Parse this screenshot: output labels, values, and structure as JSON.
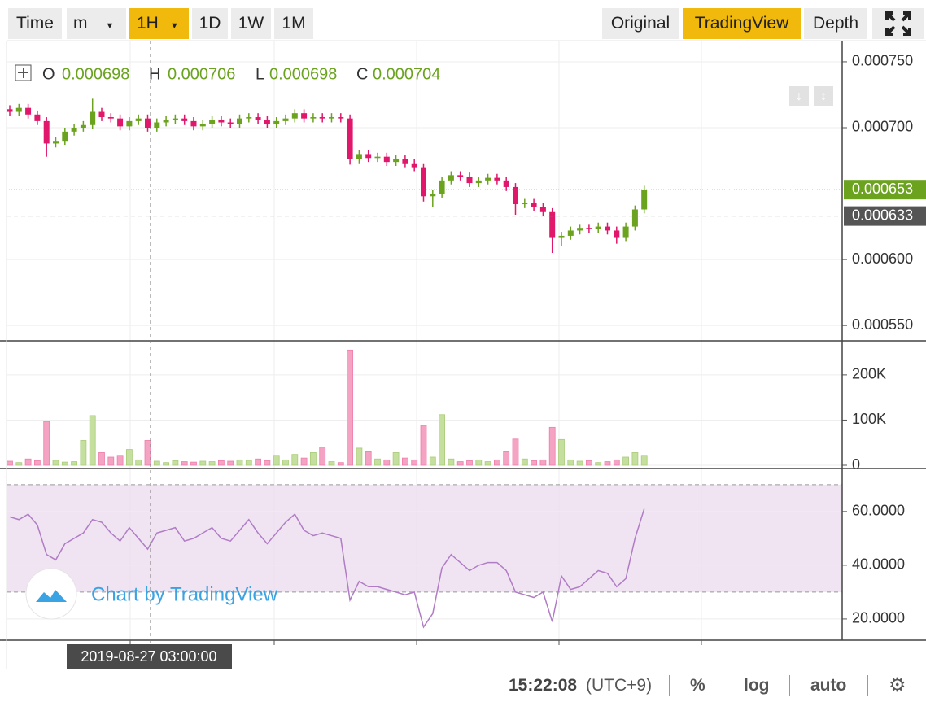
{
  "toolbar": {
    "left": [
      "Time",
      "m",
      "1H",
      "1D",
      "1W",
      "1M"
    ],
    "right": [
      "Original",
      "TradingView",
      "Depth"
    ]
  },
  "legend": {
    "o_label": "O",
    "open": 0.000698,
    "h_label": "H",
    "high": 0.000706,
    "l_label": "L",
    "low": 0.000698,
    "c_label": "C",
    "close": 0.000704
  },
  "watermark": "Chart by TradingView",
  "footer": {
    "time": "15:22:08",
    "timezone": "(UTC+9)",
    "buttons": [
      "%",
      "log",
      "auto"
    ]
  },
  "chart_data": [
    {
      "type": "candlestick",
      "up_color": "#6ba31e",
      "down_color": "#e0176b",
      "grid": true,
      "ylim": [
        0.000539,
        0.000766
      ],
      "yticks": [
        {
          "value": 0.00055,
          "label": "0.000550"
        },
        {
          "value": 0.0006,
          "label": "0.000600"
        },
        {
          "value": 0.0007,
          "label": "0.000700"
        },
        {
          "value": 0.00075,
          "label": "0.000750"
        }
      ],
      "last_price": 0.000653,
      "last_price_color": "#6ba31e",
      "marker_price": 0.000633,
      "marker_color": "#555555",
      "crosshair_label": "2019-08-27 03:00:00",
      "open": [
        0.000714,
        0.000712,
        0.000715,
        0.00071,
        0.000705,
        0.000688,
        0.00069,
        0.000697,
        0.0007,
        0.000702,
        0.000712,
        0.000708,
        0.000707,
        0.000701,
        0.000705,
        0.000707,
        0.0007,
        0.000704,
        0.000706,
        0.000707,
        0.000705,
        0.000701,
        0.000703,
        0.000706,
        0.000704,
        0.000703,
        0.000707,
        0.000708,
        0.000706,
        0.000703,
        0.000705,
        0.000707,
        0.000711,
        0.000707,
        0.000708,
        0.000707,
        0.000708,
        0.000707,
        0.000676,
        0.00068,
        0.000677,
        0.000678,
        0.000674,
        0.000676,
        0.000673,
        0.00067,
        0.000648,
        0.00065,
        0.00066,
        0.000664,
        0.000663,
        0.000658,
        0.00066,
        0.000662,
        0.00066,
        0.000655,
        0.000642,
        0.000643,
        0.00064,
        0.000636,
        0.000617,
        0.000618,
        0.000622,
        0.000624,
        0.000623,
        0.000625,
        0.000622,
        0.000617,
        0.000625,
        0.000638
      ],
      "high": [
        0.000717,
        0.000718,
        0.000718,
        0.000713,
        0.000708,
        0.000693,
        0.0007,
        0.000703,
        0.000705,
        0.000722,
        0.000715,
        0.000711,
        0.00071,
        0.000708,
        0.00071,
        0.00071,
        0.000707,
        0.000709,
        0.00071,
        0.00071,
        0.000708,
        0.000706,
        0.000709,
        0.000709,
        0.000707,
        0.00071,
        0.000711,
        0.000711,
        0.000709,
        0.000708,
        0.00071,
        0.000714,
        0.000714,
        0.000711,
        0.000711,
        0.000711,
        0.000711,
        0.00071,
        0.000683,
        0.000683,
        0.000681,
        0.000681,
        0.000679,
        0.000679,
        0.000676,
        0.000673,
        0.000653,
        0.000663,
        0.000667,
        0.000667,
        0.000666,
        0.000663,
        0.000665,
        0.000665,
        0.000663,
        0.000658,
        0.000646,
        0.000646,
        0.000643,
        0.000639,
        0.000621,
        0.000625,
        0.000627,
        0.000627,
        0.000628,
        0.000628,
        0.000625,
        0.000628,
        0.000641,
        0.000656
      ],
      "low": [
        0.000709,
        0.000709,
        0.000707,
        0.000702,
        0.000678,
        0.000685,
        0.000687,
        0.000694,
        0.000697,
        0.000699,
        0.000705,
        0.000704,
        0.000698,
        0.000698,
        0.000702,
        0.000697,
        0.000697,
        0.000701,
        0.000703,
        0.000702,
        0.000698,
        0.000698,
        0.0007,
        0.000701,
        0.0007,
        0.0007,
        0.000704,
        0.000703,
        0.0007,
        0.0007,
        0.000702,
        0.000704,
        0.000704,
        0.000704,
        0.000704,
        0.000704,
        0.000704,
        0.000672,
        0.000673,
        0.000674,
        0.000674,
        0.000671,
        0.000671,
        0.00067,
        0.000667,
        0.000644,
        0.00064,
        0.000647,
        0.000657,
        0.00066,
        0.000655,
        0.000655,
        0.000657,
        0.000657,
        0.000652,
        0.000634,
        0.000639,
        0.000637,
        0.000633,
        0.000605,
        0.00061,
        0.000615,
        0.000619,
        0.00062,
        0.00062,
        0.000619,
        0.000612,
        0.000614,
        0.000622,
        0.000635
      ],
      "close": [
        0.000712,
        0.000715,
        0.00071,
        0.000705,
        0.000688,
        0.00069,
        0.000697,
        0.0007,
        0.000702,
        0.000712,
        0.000708,
        0.000707,
        0.000701,
        0.000705,
        0.000707,
        0.0007,
        0.000704,
        0.000706,
        0.000707,
        0.000705,
        0.000701,
        0.000703,
        0.000706,
        0.000704,
        0.000703,
        0.000707,
        0.000708,
        0.000706,
        0.000703,
        0.000705,
        0.000707,
        0.000711,
        0.000707,
        0.000708,
        0.000707,
        0.000708,
        0.000707,
        0.000676,
        0.00068,
        0.000677,
        0.000678,
        0.000674,
        0.000676,
        0.000673,
        0.00067,
        0.000648,
        0.00065,
        0.00066,
        0.000664,
        0.000663,
        0.000658,
        0.00066,
        0.000662,
        0.00066,
        0.000655,
        0.000642,
        0.000643,
        0.00064,
        0.000636,
        0.000617,
        0.000618,
        0.000622,
        0.000624,
        0.000623,
        0.000625,
        0.000622,
        0.000617,
        0.000625,
        0.000638,
        0.000653
      ]
    },
    {
      "type": "bar",
      "up_color": "#c5df9f",
      "down_color": "#f5a3c3",
      "grid": true,
      "ylim": [
        0,
        270000
      ],
      "yticks": [
        0,
        {
          "value": 100000,
          "label": "100K"
        },
        {
          "value": 200000,
          "label": "200K"
        }
      ],
      "values": [
        9000,
        6000,
        14000,
        10000,
        97000,
        11000,
        7000,
        8000,
        55000,
        110000,
        28000,
        18000,
        22000,
        35000,
        12000,
        55000,
        9000,
        6000,
        10000,
        8000,
        7000,
        9000,
        8000,
        10000,
        9000,
        12000,
        11000,
        14000,
        10000,
        22000,
        12000,
        24000,
        16000,
        28000,
        40000,
        8000,
        6000,
        255000,
        38000,
        30000,
        14000,
        12000,
        28000,
        16000,
        12000,
        88000,
        18000,
        112000,
        14000,
        8000,
        10000,
        12000,
        8000,
        12000,
        30000,
        58000,
        14000,
        10000,
        12000,
        84000,
        57000,
        12000,
        9000,
        10000,
        6000,
        8000,
        12000,
        18000,
        28000,
        22000
      ]
    },
    {
      "type": "line",
      "color": "#b07cc6",
      "band": [
        30,
        70
      ],
      "band_color": "#ecdcef",
      "grid": true,
      "ylim": [
        12.1,
        74.8
      ],
      "yticks": [
        {
          "value": 20,
          "label": "20.0000"
        },
        {
          "value": 40,
          "label": "40.0000"
        },
        {
          "value": 60,
          "label": "60.0000"
        }
      ],
      "values": [
        58,
        57,
        59,
        55,
        44,
        42,
        48,
        50,
        52,
        57,
        56,
        52,
        49,
        54,
        50,
        46,
        52,
        53,
        54,
        49,
        50,
        52,
        54,
        50,
        49,
        53,
        57,
        52,
        48,
        52,
        56,
        59,
        53,
        51,
        52,
        51,
        50,
        27,
        34,
        32,
        32,
        31,
        30,
        29,
        30,
        17,
        22,
        39,
        44,
        41,
        38,
        40,
        41,
        41,
        38,
        30,
        29,
        28,
        30,
        19,
        36,
        31,
        32,
        35,
        38,
        37,
        32,
        35,
        50,
        61
      ]
    }
  ]
}
